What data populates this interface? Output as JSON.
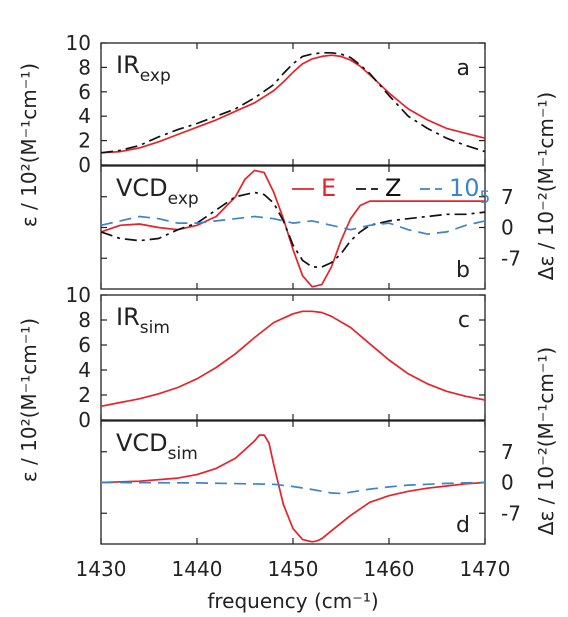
{
  "chart_data": [
    {
      "panel": "a",
      "type": "line",
      "label_main": "IR",
      "label_sub": "exp",
      "letter": "a",
      "ylabel": "ε / 10²(M⁻¹cm⁻¹)",
      "ylim": [
        0,
        10
      ],
      "yticks": [
        0,
        2,
        4,
        6,
        8,
        10
      ],
      "xlim": [
        1430,
        1470
      ],
      "series": [
        {
          "name": "E",
          "color": "#e8222a",
          "dash": "solid",
          "x": [
            1430,
            1432,
            1434,
            1436,
            1438,
            1440,
            1442,
            1444,
            1446,
            1448,
            1449,
            1450,
            1451,
            1452,
            1453,
            1454,
            1455,
            1456,
            1457,
            1458,
            1460,
            1462,
            1464,
            1466,
            1468,
            1470
          ],
          "y": [
            1.0,
            1.1,
            1.4,
            1.9,
            2.5,
            3.1,
            3.7,
            4.4,
            5.1,
            6.1,
            6.8,
            7.6,
            8.3,
            8.7,
            8.9,
            9.0,
            8.9,
            8.6,
            8.1,
            7.4,
            5.9,
            4.6,
            3.7,
            3.0,
            2.6,
            2.2
          ]
        },
        {
          "name": "Z",
          "color": "#111111",
          "dash": "dashdot",
          "x": [
            1430,
            1432,
            1434,
            1436,
            1438,
            1440,
            1442,
            1444,
            1446,
            1448,
            1449,
            1450,
            1451,
            1452,
            1453,
            1454,
            1455,
            1456,
            1457,
            1458,
            1460,
            1462,
            1464,
            1466,
            1468,
            1470
          ],
          "y": [
            1.0,
            1.2,
            1.6,
            2.3,
            2.9,
            3.4,
            4.0,
            4.6,
            5.5,
            6.6,
            7.5,
            8.3,
            8.9,
            9.1,
            9.2,
            9.2,
            9.1,
            8.8,
            8.2,
            7.5,
            5.7,
            4.0,
            3.0,
            2.2,
            1.6,
            1.1
          ]
        }
      ]
    },
    {
      "panel": "b",
      "type": "line",
      "label_main": "VCD",
      "label_sub": "exp",
      "letter": "b",
      "ylabel": "Δε / 10⁻²(M⁻¹cm⁻¹)",
      "ylim": [
        -14,
        14
      ],
      "yticks": [
        -7,
        0,
        7
      ],
      "xlim": [
        1430,
        1470
      ],
      "legend": [
        {
          "text": "E",
          "color": "#e8222a",
          "dash": "solid"
        },
        {
          "text": "Z",
          "color": "#111111",
          "dash": "dash"
        },
        {
          "text": "10",
          "sub": "5",
          "color": "#3d85c6",
          "dash": "dash"
        }
      ],
      "series": [
        {
          "name": "E",
          "color": "#e8222a",
          "dash": "solid",
          "x": [
            1430,
            1432,
            1434,
            1436,
            1438,
            1440,
            1442,
            1444,
            1445,
            1446,
            1447,
            1448,
            1449,
            1450,
            1451,
            1452,
            1453,
            1454,
            1455,
            1456,
            1457,
            1458,
            1460,
            1462,
            1464,
            1466,
            1468,
            1470
          ],
          "y": [
            -1,
            0.5,
            0.8,
            0,
            -0.5,
            0.5,
            2.5,
            7,
            11,
            13,
            12.5,
            8,
            2,
            -5,
            -11,
            -13.5,
            -13,
            -9,
            -3,
            2,
            5,
            6,
            6,
            6,
            6,
            6,
            6,
            6
          ]
        },
        {
          "name": "Z",
          "color": "#111111",
          "dash": "dashdot",
          "x": [
            1430,
            1432,
            1434,
            1436,
            1438,
            1440,
            1442,
            1444,
            1445,
            1446,
            1447,
            1448,
            1449,
            1450,
            1451,
            1452,
            1453,
            1454,
            1455,
            1456,
            1457,
            1458,
            1460,
            1462,
            1464,
            1466,
            1468,
            1470
          ],
          "y": [
            -1,
            -2.5,
            -3,
            -2.5,
            -0.5,
            1,
            4,
            7,
            7.5,
            8,
            7.5,
            5.5,
            1.5,
            -4,
            -7.5,
            -9,
            -9,
            -8,
            -6,
            -3,
            -1,
            0.5,
            1.5,
            2,
            2.5,
            3,
            3,
            3.5
          ]
        },
        {
          "name": "10_5",
          "color": "#3d85c6",
          "dash": "dash",
          "x": [
            1430,
            1432,
            1434,
            1436,
            1438,
            1440,
            1442,
            1444,
            1446,
            1448,
            1450,
            1452,
            1454,
            1456,
            1458,
            1460,
            1462,
            1464,
            1466,
            1468,
            1470
          ],
          "y": [
            0.5,
            1.5,
            2.5,
            2,
            1,
            1,
            1.5,
            2,
            2.5,
            2,
            1,
            1.5,
            0.5,
            -0.5,
            0.5,
            1,
            -0.5,
            -1.5,
            -1,
            0.5,
            1.5
          ]
        }
      ]
    },
    {
      "panel": "c",
      "type": "line",
      "label_main": "IR",
      "label_sub": "sim",
      "letter": "c",
      "ylabel": "ε / 10²(M⁻¹cm⁻¹)",
      "ylim": [
        0,
        10
      ],
      "yticks": [
        0,
        2,
        4,
        6,
        8,
        10
      ],
      "xlim": [
        1430,
        1470
      ],
      "series": [
        {
          "name": "E",
          "color": "#e8222a",
          "dash": "solid",
          "x": [
            1430,
            1432,
            1434,
            1436,
            1438,
            1440,
            1442,
            1444,
            1446,
            1448,
            1450,
            1451,
            1452,
            1453,
            1454,
            1456,
            1458,
            1460,
            1462,
            1464,
            1466,
            1468,
            1470
          ],
          "y": [
            1.1,
            1.4,
            1.7,
            2.1,
            2.6,
            3.3,
            4.2,
            5.3,
            6.6,
            7.8,
            8.5,
            8.7,
            8.7,
            8.6,
            8.3,
            7.4,
            6.1,
            4.8,
            3.7,
            2.9,
            2.3,
            1.9,
            1.6
          ]
        }
      ]
    },
    {
      "panel": "d",
      "type": "line",
      "label_main": "VCD",
      "label_sub": "sim",
      "letter": "d",
      "ylabel": "Δε / 10⁻²(M⁻¹cm⁻¹)",
      "ylim": [
        -14,
        14
      ],
      "yticks": [
        -7,
        0,
        7
      ],
      "xlim": [
        1430,
        1470
      ],
      "xticks": [
        1430,
        1440,
        1450,
        1460,
        1470
      ],
      "xlabel": "frequency (cm⁻¹)",
      "series": [
        {
          "name": "E",
          "color": "#e8222a",
          "dash": "solid",
          "x": [
            1430,
            1434,
            1438,
            1440,
            1442,
            1444,
            1445,
            1446,
            1446.5,
            1447,
            1447.5,
            1448,
            1449,
            1450,
            1451,
            1452,
            1452.5,
            1453,
            1454,
            1456,
            1458,
            1460,
            1462,
            1464,
            1466,
            1468,
            1470
          ],
          "y": [
            0,
            0.3,
            1,
            1.8,
            3.2,
            5.5,
            7.5,
            9.5,
            10.8,
            10.8,
            9,
            4,
            -5,
            -10.5,
            -13,
            -13.5,
            -13.3,
            -12.8,
            -11,
            -7.5,
            -4.5,
            -3,
            -2,
            -1.3,
            -0.8,
            -0.3,
            0
          ]
        },
        {
          "name": "10_5",
          "color": "#3d85c6",
          "dash": "dash",
          "x": [
            1430,
            1440,
            1448,
            1450,
            1452,
            1454,
            1455,
            1456,
            1458,
            1460,
            1462,
            1464,
            1466,
            1468,
            1470
          ],
          "y": [
            0,
            -0.1,
            -0.4,
            -0.9,
            -1.6,
            -2.4,
            -2.5,
            -2.2,
            -1.5,
            -1,
            -0.6,
            -0.4,
            -0.2,
            -0.1,
            0
          ]
        }
      ]
    }
  ]
}
